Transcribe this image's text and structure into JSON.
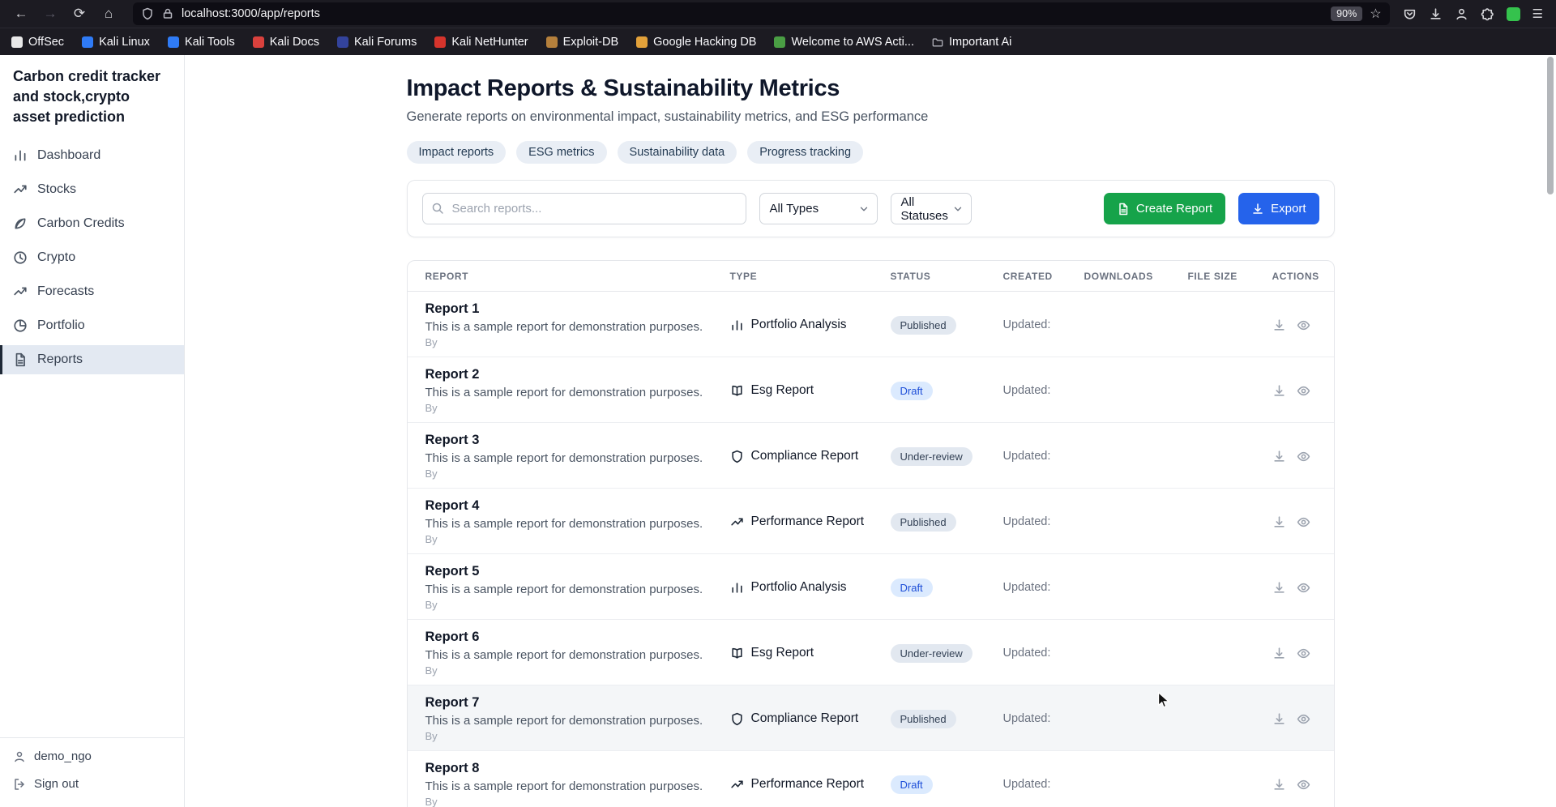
{
  "icons": {
    "back": "←",
    "forward": "→",
    "reload": "⟳",
    "home": "⌂",
    "star": "☆",
    "menu": "☰"
  },
  "browser": {
    "url": "localhost:3000/app/reports",
    "zoom": "90%",
    "bookmarks": [
      {
        "label": "OffSec",
        "color": "#e8e8e8"
      },
      {
        "label": "Kali Linux",
        "color": "#2f7bf6"
      },
      {
        "label": "Kali Tools",
        "color": "#2f7bf6"
      },
      {
        "label": "Kali Docs",
        "color": "#d9413d"
      },
      {
        "label": "Kali Forums",
        "color": "#33439c"
      },
      {
        "label": "Kali NetHunter",
        "color": "#d6342c"
      },
      {
        "label": "Exploit-DB",
        "color": "#b5803c"
      },
      {
        "label": "Google Hacking DB",
        "color": "#e2a13a"
      },
      {
        "label": "Welcome to AWS Acti...",
        "color": "#4a9e44"
      },
      {
        "label": "Important Ai",
        "icon": "folder"
      }
    ]
  },
  "sidebar": {
    "title": "Carbon credit tracker and stock,crypto asset prediction",
    "items": [
      {
        "label": "Dashboard",
        "icon": "bar-chart"
      },
      {
        "label": "Stocks",
        "icon": "trend-up"
      },
      {
        "label": "Carbon Credits",
        "icon": "leaf"
      },
      {
        "label": "Crypto",
        "icon": "clock"
      },
      {
        "label": "Forecasts",
        "icon": "trend-up"
      },
      {
        "label": "Portfolio",
        "icon": "pie"
      },
      {
        "label": "Reports",
        "icon": "file-text",
        "active": true
      }
    ],
    "username": "demo_ngo",
    "signout_label": "Sign out"
  },
  "page": {
    "title": "Impact Reports & Sustainability Metrics",
    "subtitle": "Generate reports on environmental impact, sustainability metrics, and ESG performance",
    "tags": [
      "Impact reports",
      "ESG metrics",
      "Sustainability data",
      "Progress tracking"
    ],
    "toolbar": {
      "search_placeholder": "Search reports...",
      "type_filter": "All Types",
      "status_filter": "All Statuses",
      "create_label": "Create Report",
      "export_label": "Export"
    },
    "table": {
      "headers": [
        "REPORT",
        "TYPE",
        "STATUS",
        "CREATED",
        "DOWNLOADS",
        "FILE SIZE",
        "ACTIONS"
      ],
      "rows": [
        {
          "name": "Report 1",
          "desc": "This is a sample report for demonstration purposes.",
          "by": "By",
          "type": "Portfolio Analysis",
          "type_icon": "bar-chart",
          "status": "Published",
          "created": "Updated:"
        },
        {
          "name": "Report 2",
          "desc": "This is a sample report for demonstration purposes.",
          "by": "By",
          "type": "Esg Report",
          "type_icon": "book",
          "status": "Draft",
          "created": "Updated:"
        },
        {
          "name": "Report 3",
          "desc": "This is a sample report for demonstration purposes.",
          "by": "By",
          "type": "Compliance Report",
          "type_icon": "shield",
          "status": "Under-review",
          "created": "Updated:"
        },
        {
          "name": "Report 4",
          "desc": "This is a sample report for demonstration purposes.",
          "by": "By",
          "type": "Performance Report",
          "type_icon": "trend-up",
          "status": "Published",
          "created": "Updated:"
        },
        {
          "name": "Report 5",
          "desc": "This is a sample report for demonstration purposes.",
          "by": "By",
          "type": "Portfolio Analysis",
          "type_icon": "bar-chart",
          "status": "Draft",
          "created": "Updated:"
        },
        {
          "name": "Report 6",
          "desc": "This is a sample report for demonstration purposes.",
          "by": "By",
          "type": "Esg Report",
          "type_icon": "book",
          "status": "Under-review",
          "created": "Updated:"
        },
        {
          "name": "Report 7",
          "desc": "This is a sample report for demonstration purposes.",
          "by": "By",
          "type": "Compliance Report",
          "type_icon": "shield",
          "status": "Published",
          "created": "Updated:",
          "hovered": true
        },
        {
          "name": "Report 8",
          "desc": "This is a sample report for demonstration purposes.",
          "by": "By",
          "type": "Performance Report",
          "type_icon": "trend-up",
          "status": "Draft",
          "created": "Updated:"
        }
      ]
    }
  },
  "colors": {
    "create_button": "#16a34a",
    "export_button": "#2563eb",
    "draft_badge_bg": "#dbeafe",
    "neutral_badge_bg": "#e2e8f0",
    "active_nav_bg": "#e3e9f2"
  }
}
